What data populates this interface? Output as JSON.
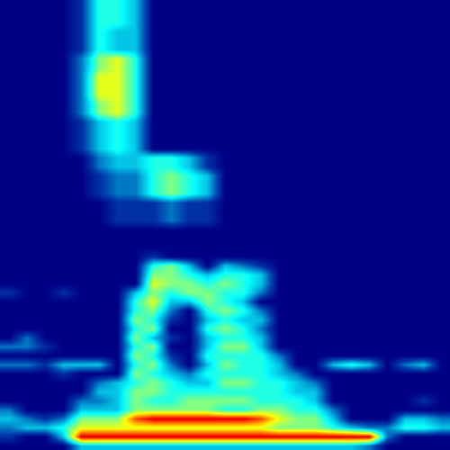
{
  "chart_data": {
    "type": "heatmap",
    "tick_labels": false,
    "zlim": [
      0,
      10
    ],
    "cells": [
      [
        0,
        0,
        0,
        0,
        1,
        4,
        4,
        3,
        0,
        0,
        0,
        0,
        0,
        0,
        0,
        0,
        0,
        0,
        0,
        0,
        0,
        0,
        0,
        0,
        0
      ],
      [
        0,
        0,
        0,
        0,
        1,
        4,
        4,
        3,
        0,
        0,
        0,
        0,
        0,
        0,
        0,
        0,
        0,
        0,
        0,
        0,
        0,
        0,
        0,
        0,
        0
      ],
      [
        0,
        0,
        0,
        0,
        1,
        4,
        4,
        3,
        0,
        0,
        0,
        0,
        0,
        0,
        0,
        0,
        0,
        0,
        0,
        0,
        0,
        0,
        0,
        0,
        0
      ],
      [
        0,
        0,
        0,
        0,
        1,
        4,
        3,
        3,
        0,
        0,
        0,
        0,
        0,
        0,
        0,
        0,
        0,
        0,
        0,
        0,
        0,
        0,
        0,
        0,
        0
      ],
      [
        0,
        0,
        0,
        0,
        1,
        4,
        3,
        3,
        0,
        0,
        0,
        0,
        0,
        0,
        0,
        0,
        0,
        0,
        0,
        0,
        0,
        0,
        0,
        0,
        0
      ],
      [
        0,
        0,
        0,
        0,
        1,
        4,
        3,
        3,
        0,
        0,
        0,
        0,
        0,
        0,
        0,
        0,
        0,
        0,
        0,
        0,
        0,
        0,
        0,
        0,
        0
      ],
      [
        0,
        0,
        0,
        0,
        2,
        5,
        6,
        4,
        0,
        0,
        0,
        0,
        0,
        0,
        0,
        0,
        0,
        0,
        0,
        0,
        0,
        0,
        0,
        0,
        0
      ],
      [
        0,
        0,
        0,
        0,
        2,
        5,
        6,
        4,
        0,
        0,
        0,
        0,
        0,
        0,
        0,
        0,
        0,
        0,
        0,
        0,
        0,
        0,
        0,
        0,
        0
      ],
      [
        0,
        0,
        0,
        0,
        2,
        6,
        6,
        4,
        0,
        0,
        0,
        0,
        0,
        0,
        0,
        0,
        0,
        0,
        0,
        0,
        0,
        0,
        0,
        0,
        0
      ],
      [
        0,
        0,
        0,
        0,
        2,
        6,
        6,
        4,
        0,
        0,
        0,
        0,
        0,
        0,
        0,
        0,
        0,
        0,
        0,
        0,
        0,
        0,
        0,
        0,
        0
      ],
      [
        0,
        0,
        0,
        0,
        2,
        6,
        6,
        4,
        0,
        0,
        0,
        0,
        0,
        0,
        0,
        0,
        0,
        0,
        0,
        0,
        0,
        0,
        0,
        0,
        0
      ],
      [
        0,
        0,
        0,
        0,
        2,
        5,
        6,
        4,
        0,
        0,
        0,
        0,
        0,
        0,
        0,
        0,
        0,
        0,
        0,
        0,
        0,
        0,
        0,
        0,
        0
      ],
      [
        0,
        0,
        0,
        0,
        2,
        5,
        6,
        4,
        0,
        0,
        0,
        0,
        0,
        0,
        0,
        0,
        0,
        0,
        0,
        0,
        0,
        0,
        0,
        0,
        0
      ],
      [
        0,
        0,
        0,
        0,
        1,
        3,
        4,
        3,
        0,
        0,
        0,
        0,
        0,
        0,
        0,
        0,
        0,
        0,
        0,
        0,
        0,
        0,
        0,
        0,
        0
      ],
      [
        0,
        0,
        0,
        0,
        1,
        3,
        4,
        3,
        0,
        0,
        0,
        0,
        0,
        0,
        0,
        0,
        0,
        0,
        0,
        0,
        0,
        0,
        0,
        0,
        0
      ],
      [
        0,
        0,
        0,
        0,
        1,
        3,
        4,
        3,
        0,
        0,
        0,
        0,
        0,
        0,
        0,
        0,
        0,
        0,
        0,
        0,
        0,
        0,
        0,
        0,
        0
      ],
      [
        0,
        0,
        0,
        0,
        1,
        3,
        4,
        3,
        0,
        0,
        0,
        0,
        0,
        0,
        0,
        0,
        0,
        0,
        0,
        0,
        0,
        0,
        0,
        0,
        0
      ],
      [
        0,
        0,
        0,
        0,
        0,
        2,
        3,
        3,
        4,
        4,
        3,
        1,
        0,
        0,
        0,
        0,
        0,
        0,
        0,
        0,
        0,
        0,
        0,
        0,
        0
      ],
      [
        0,
        0,
        0,
        0,
        0,
        2,
        3,
        3,
        4,
        4,
        3,
        1,
        0,
        0,
        0,
        0,
        0,
        0,
        0,
        0,
        0,
        0,
        0,
        0,
        0
      ],
      [
        0,
        0,
        0,
        0,
        0,
        1,
        2,
        2,
        4,
        5,
        4,
        3,
        0,
        0,
        0,
        0,
        0,
        0,
        0,
        0,
        0,
        0,
        0,
        0,
        0
      ],
      [
        0,
        0,
        0,
        0,
        0,
        1,
        2,
        2,
        4,
        5,
        4,
        3,
        0,
        0,
        0,
        0,
        0,
        0,
        0,
        0,
        0,
        0,
        0,
        0,
        0
      ],
      [
        0,
        0,
        0,
        0,
        0,
        1,
        2,
        2,
        4,
        5,
        4,
        3,
        0,
        0,
        0,
        0,
        0,
        0,
        0,
        0,
        0,
        0,
        0,
        0,
        0
      ],
      [
        0,
        0,
        0,
        0,
        0,
        0,
        1,
        1,
        1,
        2,
        1,
        1,
        0,
        0,
        0,
        0,
        0,
        0,
        0,
        0,
        0,
        0,
        0,
        0,
        0
      ],
      [
        0,
        0,
        0,
        0,
        0,
        0,
        1,
        1,
        1,
        2,
        1,
        1,
        0,
        0,
        0,
        0,
        0,
        0,
        0,
        0,
        0,
        0,
        0,
        0,
        0
      ],
      [
        0,
        0,
        0,
        0,
        0,
        0,
        1,
        1,
        1,
        2,
        1,
        1,
        0,
        0,
        0,
        0,
        0,
        0,
        0,
        0,
        0,
        0,
        0,
        0,
        0
      ],
      [
        0,
        0,
        0,
        0,
        0,
        0,
        0,
        0,
        0,
        0,
        0,
        0,
        0,
        0,
        0,
        0,
        0,
        0,
        0,
        0,
        0,
        0,
        0,
        0,
        0
      ],
      [
        0,
        0,
        0,
        0,
        0,
        0,
        0,
        0,
        0,
        0,
        0,
        0,
        0,
        0,
        0,
        0,
        0,
        0,
        0,
        0,
        0,
        0,
        0,
        0,
        0
      ],
      [
        0,
        0,
        0,
        0,
        0,
        0,
        0,
        0,
        0,
        0,
        0,
        0,
        0,
        0,
        0,
        0,
        0,
        0,
        0,
        0,
        0,
        0,
        0,
        0,
        0
      ],
      [
        0,
        0,
        0,
        0,
        0,
        0,
        0,
        0,
        1,
        0,
        0,
        0,
        0,
        0,
        0,
        0,
        0,
        0,
        0,
        0,
        0,
        0,
        0,
        0,
        0
      ],
      [
        0,
        0,
        0,
        0,
        0,
        0,
        0,
        0,
        4,
        5,
        3,
        0,
        3,
        2,
        1,
        0,
        0,
        0,
        0,
        0,
        0,
        0,
        0,
        0,
        0
      ],
      [
        0,
        0,
        0,
        0,
        0,
        0,
        0,
        0,
        5,
        5,
        4,
        3,
        4,
        4,
        3,
        0,
        0,
        0,
        0,
        0,
        0,
        0,
        0,
        0,
        0
      ],
      [
        0,
        0,
        0,
        0,
        0,
        0,
        0,
        0,
        6,
        5,
        5,
        4,
        5,
        4,
        3,
        0,
        0,
        0,
        0,
        0,
        0,
        0,
        0,
        0,
        0
      ],
      [
        1,
        0,
        0,
        1,
        0,
        0,
        0,
        3,
        5,
        4,
        5,
        5,
        4,
        4,
        2,
        0,
        0,
        0,
        0,
        0,
        0,
        0,
        0,
        0,
        0
      ],
      [
        0,
        0,
        0,
        0,
        0,
        0,
        0,
        4,
        6,
        3,
        3,
        5,
        4,
        3,
        0,
        0,
        0,
        0,
        0,
        0,
        0,
        0,
        0,
        0,
        0
      ],
      [
        0,
        0,
        0,
        0,
        0,
        0,
        0,
        4,
        5,
        2,
        0,
        4,
        5,
        4,
        2,
        0,
        0,
        0,
        0,
        0,
        0,
        0,
        0,
        0,
        0
      ],
      [
        0,
        0,
        0,
        0,
        0,
        0,
        0,
        5,
        4,
        1,
        0,
        3,
        4,
        3,
        3,
        0,
        0,
        0,
        0,
        0,
        0,
        0,
        0,
        0,
        0
      ],
      [
        0,
        0,
        0,
        0,
        0,
        0,
        0,
        4,
        5,
        0,
        0,
        4,
        5,
        4,
        2,
        0,
        0,
        0,
        0,
        0,
        0,
        0,
        0,
        0,
        0
      ],
      [
        0,
        2,
        0,
        0,
        0,
        0,
        0,
        5,
        3,
        1,
        0,
        3,
        4,
        4,
        3,
        0,
        0,
        0,
        0,
        0,
        0,
        0,
        0,
        0,
        0
      ],
      [
        2,
        2,
        1,
        0,
        0,
        0,
        0,
        4,
        5,
        0,
        0,
        3,
        5,
        5,
        3,
        0,
        0,
        0,
        0,
        0,
        0,
        0,
        0,
        0,
        0
      ],
      [
        0,
        0,
        0,
        0,
        0,
        0,
        0,
        5,
        4,
        1,
        0,
        4,
        4,
        4,
        4,
        2,
        0,
        0,
        0,
        0,
        0,
        0,
        0,
        0,
        0
      ],
      [
        2,
        2,
        1,
        3,
        3,
        3,
        0,
        4,
        5,
        2,
        0,
        3,
        5,
        4,
        4,
        3,
        0,
        0,
        3,
        4,
        3,
        0,
        2,
        3,
        0
      ],
      [
        0,
        0,
        0,
        1,
        0,
        0,
        0,
        5,
        4,
        3,
        2,
        4,
        4,
        4,
        4,
        3,
        2,
        0,
        0,
        0,
        0,
        0,
        0,
        0,
        0
      ],
      [
        0,
        0,
        0,
        0,
        0,
        2,
        3,
        4,
        5,
        4,
        3,
        3,
        5,
        5,
        4,
        4,
        3,
        2,
        0,
        0,
        0,
        0,
        0,
        0,
        0
      ],
      [
        0,
        0,
        0,
        0,
        0,
        3,
        3,
        5,
        5,
        4,
        4,
        4,
        4,
        4,
        4,
        4,
        3,
        3,
        0,
        0,
        0,
        0,
        0,
        0,
        0
      ],
      [
        0,
        0,
        0,
        0,
        2,
        2,
        3,
        5,
        4,
        4,
        5,
        5,
        5,
        5,
        4,
        4,
        4,
        3,
        0,
        0,
        0,
        0,
        0,
        1,
        0
      ],
      [
        2,
        0,
        0,
        0,
        3,
        3,
        3,
        5,
        5,
        5,
        5,
        5,
        4,
        4,
        5,
        5,
        4,
        4,
        2,
        0,
        0,
        0,
        0,
        0,
        0
      ],
      [
        3,
        2,
        1,
        2,
        5,
        5,
        5,
        8,
        9,
        9,
        9,
        9,
        9,
        9,
        8,
        6,
        5,
        5,
        3,
        0,
        0,
        0,
        3,
        3,
        2
      ],
      [
        2,
        3,
        3,
        4,
        6,
        6,
        6,
        6,
        6,
        6,
        6,
        6,
        6,
        6,
        6,
        5,
        5,
        5,
        4,
        3,
        2,
        2,
        4,
        4,
        3
      ],
      [
        1,
        0,
        0,
        3,
        9,
        9,
        9,
        9,
        9,
        9,
        9,
        9,
        9,
        9,
        9,
        9,
        9,
        9,
        9,
        9,
        9,
        2,
        0,
        0,
        0
      ],
      [
        0,
        0,
        0,
        0,
        3,
        3,
        3,
        3,
        3,
        3,
        3,
        3,
        3,
        3,
        3,
        3,
        3,
        3,
        3,
        3,
        2,
        0,
        0,
        0,
        0
      ]
    ]
  }
}
